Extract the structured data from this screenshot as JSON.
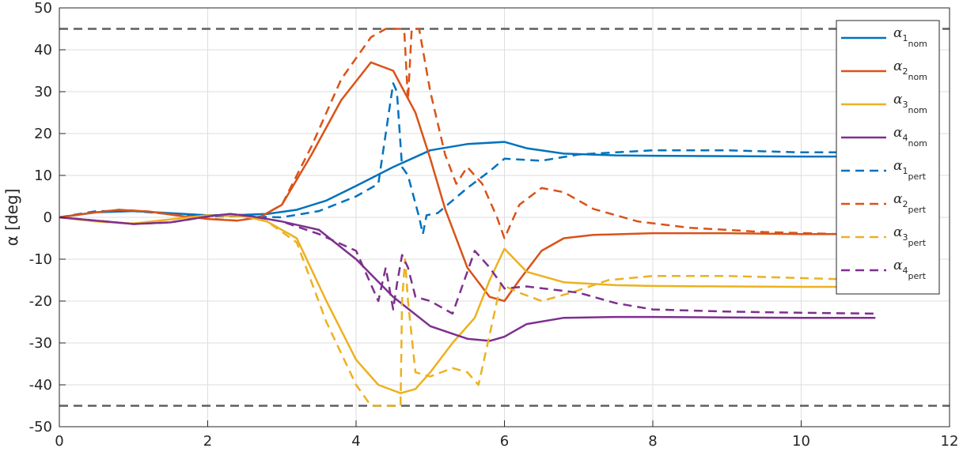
{
  "chart_data": {
    "type": "line",
    "xlabel": "",
    "ylabel": "α [deg]",
    "xlim": [
      0,
      12
    ],
    "ylim": [
      -50,
      50
    ],
    "xticks": [
      0,
      2,
      4,
      6,
      8,
      10,
      12
    ],
    "yticks": [
      -50,
      -40,
      -30,
      -20,
      -10,
      0,
      10,
      20,
      30,
      40,
      50
    ],
    "grid": true,
    "legend_position": "top-right",
    "reference_lines": [
      {
        "y": 45,
        "color": "#5f5f5f",
        "style": "dashed"
      },
      {
        "y": -45,
        "color": "#5f5f5f",
        "style": "dashed"
      }
    ],
    "series": [
      {
        "name": "α",
        "sub1": "1",
        "sub2": "nom",
        "color": "#0072BD",
        "style": "solid",
        "points": [
          [
            0,
            0
          ],
          [
            0.5,
            1.2
          ],
          [
            1,
            1.5
          ],
          [
            1.5,
            1
          ],
          [
            2,
            0.5
          ],
          [
            2.5,
            0.6
          ],
          [
            2.8,
            0.8
          ],
          [
            3.2,
            1.8
          ],
          [
            3.6,
            4
          ],
          [
            4,
            7.5
          ],
          [
            4.5,
            12
          ],
          [
            5,
            16
          ],
          [
            5.5,
            17.5
          ],
          [
            6,
            18
          ],
          [
            6.3,
            16.5
          ],
          [
            6.8,
            15.2
          ],
          [
            7.5,
            14.8
          ],
          [
            8,
            14.7
          ],
          [
            9,
            14.6
          ],
          [
            10,
            14.5
          ],
          [
            11,
            14.5
          ]
        ]
      },
      {
        "name": "α",
        "sub1": "2",
        "sub2": "nom",
        "color": "#D95319",
        "style": "solid",
        "points": [
          [
            0,
            0
          ],
          [
            0.4,
            1
          ],
          [
            0.8,
            1.8
          ],
          [
            1.2,
            1.4
          ],
          [
            1.6,
            0.4
          ],
          [
            2,
            -0.4
          ],
          [
            2.4,
            -0.8
          ],
          [
            2.7,
            0
          ],
          [
            3,
            3
          ],
          [
            3.4,
            15
          ],
          [
            3.8,
            28
          ],
          [
            4.2,
            37
          ],
          [
            4.5,
            35
          ],
          [
            4.8,
            25
          ],
          [
            5,
            14
          ],
          [
            5.2,
            2
          ],
          [
            5.5,
            -12
          ],
          [
            5.8,
            -19
          ],
          [
            6,
            -20
          ],
          [
            6.2,
            -15
          ],
          [
            6.5,
            -8
          ],
          [
            6.8,
            -5
          ],
          [
            7.2,
            -4.2
          ],
          [
            8,
            -3.8
          ],
          [
            9,
            -3.8
          ],
          [
            10,
            -4
          ],
          [
            11,
            -4
          ]
        ]
      },
      {
        "name": "α",
        "sub1": "3",
        "sub2": "nom",
        "color": "#EDB120",
        "style": "solid",
        "points": [
          [
            0,
            0
          ],
          [
            0.5,
            -1
          ],
          [
            1,
            -1.5
          ],
          [
            1.5,
            -0.5
          ],
          [
            2,
            0.5
          ],
          [
            2.5,
            0.2
          ],
          [
            2.8,
            -1
          ],
          [
            3.2,
            -5
          ],
          [
            3.6,
            -20
          ],
          [
            4,
            -34
          ],
          [
            4.3,
            -40
          ],
          [
            4.6,
            -42
          ],
          [
            4.8,
            -41
          ],
          [
            5,
            -37
          ],
          [
            5.3,
            -30
          ],
          [
            5.6,
            -24
          ],
          [
            5.8,
            -15
          ],
          [
            6,
            -7.5
          ],
          [
            6.3,
            -13
          ],
          [
            6.8,
            -15.5
          ],
          [
            7.5,
            -16.2
          ],
          [
            8,
            -16.4
          ],
          [
            9,
            -16.5
          ],
          [
            10,
            -16.6
          ],
          [
            11,
            -16.6
          ]
        ]
      },
      {
        "name": "α",
        "sub1": "4",
        "sub2": "nom",
        "color": "#7E2F8E",
        "style": "solid",
        "points": [
          [
            0,
            0
          ],
          [
            0.5,
            -0.8
          ],
          [
            1,
            -1.6
          ],
          [
            1.5,
            -1.2
          ],
          [
            2,
            0.2
          ],
          [
            2.3,
            0.8
          ],
          [
            2.6,
            0.2
          ],
          [
            3,
            -1
          ],
          [
            3.5,
            -3
          ],
          [
            4,
            -10
          ],
          [
            4.5,
            -19
          ],
          [
            5,
            -26
          ],
          [
            5.5,
            -29
          ],
          [
            5.8,
            -29.5
          ],
          [
            6,
            -28.5
          ],
          [
            6.3,
            -25.5
          ],
          [
            6.8,
            -24
          ],
          [
            7.5,
            -23.8
          ],
          [
            8,
            -23.8
          ],
          [
            9,
            -23.9
          ],
          [
            10,
            -24
          ],
          [
            11,
            -24
          ]
        ]
      },
      {
        "name": "α",
        "sub1": "1",
        "sub2": "pert",
        "color": "#0072BD",
        "style": "dashed",
        "points": [
          [
            0,
            0
          ],
          [
            0.5,
            1.5
          ],
          [
            1,
            1.5
          ],
          [
            1.5,
            0.8
          ],
          [
            2,
            0.3
          ],
          [
            2.5,
            0.2
          ],
          [
            3,
            0
          ],
          [
            3.5,
            1.5
          ],
          [
            4,
            5
          ],
          [
            4.3,
            8
          ],
          [
            4.5,
            32
          ],
          [
            4.55,
            30
          ],
          [
            4.62,
            12
          ],
          [
            4.7,
            10
          ],
          [
            4.85,
            0
          ],
          [
            4.9,
            -4
          ],
          [
            4.95,
            0.5
          ],
          [
            5.1,
            1
          ],
          [
            5.5,
            7
          ],
          [
            5.8,
            11
          ],
          [
            6,
            14
          ],
          [
            6.5,
            13.5
          ],
          [
            7,
            15
          ],
          [
            7.5,
            15.5
          ],
          [
            8,
            16
          ],
          [
            9,
            16
          ],
          [
            10,
            15.5
          ],
          [
            11,
            15.5
          ]
        ]
      },
      {
        "name": "α",
        "sub1": "2",
        "sub2": "pert",
        "color": "#D95319",
        "style": "dashed",
        "points": [
          [
            0,
            0
          ],
          [
            0.4,
            1
          ],
          [
            0.8,
            1.8
          ],
          [
            1.2,
            1.4
          ],
          [
            1.6,
            0.5
          ],
          [
            2,
            -0.3
          ],
          [
            2.4,
            -0.8
          ],
          [
            2.7,
            0
          ],
          [
            3,
            3
          ],
          [
            3.4,
            17
          ],
          [
            3.8,
            33
          ],
          [
            4.2,
            43
          ],
          [
            4.4,
            45
          ],
          [
            4.6,
            45
          ],
          [
            4.65,
            44.5
          ],
          [
            4.7,
            28
          ],
          [
            4.75,
            45
          ],
          [
            4.85,
            45
          ],
          [
            4.9,
            40
          ],
          [
            5.0,
            30
          ],
          [
            5.2,
            15
          ],
          [
            5.35,
            8
          ],
          [
            5.5,
            12
          ],
          [
            5.7,
            8
          ],
          [
            5.9,
            0
          ],
          [
            6,
            -5
          ],
          [
            6.2,
            3
          ],
          [
            6.5,
            7
          ],
          [
            6.8,
            6
          ],
          [
            7.2,
            2
          ],
          [
            7.8,
            -1
          ],
          [
            8.5,
            -2.5
          ],
          [
            9.5,
            -3.5
          ],
          [
            10.5,
            -4
          ],
          [
            11,
            -4
          ]
        ]
      },
      {
        "name": "α",
        "sub1": "3",
        "sub2": "pert",
        "color": "#EDB120",
        "style": "dashed",
        "points": [
          [
            0,
            0
          ],
          [
            0.5,
            -1
          ],
          [
            1,
            -1.5
          ],
          [
            1.5,
            -0.5
          ],
          [
            2,
            0.5
          ],
          [
            2.5,
            0.2
          ],
          [
            2.8,
            -1
          ],
          [
            3.2,
            -6
          ],
          [
            3.6,
            -25
          ],
          [
            4,
            -40
          ],
          [
            4.2,
            -45
          ],
          [
            4.6,
            -45
          ],
          [
            4.62,
            -20
          ],
          [
            4.66,
            -10
          ],
          [
            4.7,
            -20
          ],
          [
            4.8,
            -37
          ],
          [
            5,
            -38
          ],
          [
            5.3,
            -36
          ],
          [
            5.5,
            -37
          ],
          [
            5.65,
            -40
          ],
          [
            5.8,
            -28
          ],
          [
            5.95,
            -16
          ],
          [
            6.2,
            -18
          ],
          [
            6.5,
            -20
          ],
          [
            6.9,
            -18
          ],
          [
            7.4,
            -15
          ],
          [
            8,
            -14
          ],
          [
            9,
            -14
          ],
          [
            10,
            -14.5
          ],
          [
            11,
            -15
          ]
        ]
      },
      {
        "name": "α",
        "sub1": "4",
        "sub2": "pert",
        "color": "#7E2F8E",
        "style": "dashed",
        "points": [
          [
            0,
            0
          ],
          [
            0.5,
            -0.8
          ],
          [
            1,
            -1.6
          ],
          [
            1.5,
            -1.2
          ],
          [
            2,
            0.2
          ],
          [
            2.3,
            0.8
          ],
          [
            2.6,
            0.2
          ],
          [
            3,
            -1
          ],
          [
            3.5,
            -4
          ],
          [
            4,
            -8
          ],
          [
            4.3,
            -20
          ],
          [
            4.4,
            -12
          ],
          [
            4.5,
            -22
          ],
          [
            4.55,
            -16
          ],
          [
            4.62,
            -9
          ],
          [
            4.7,
            -12
          ],
          [
            4.8,
            -19
          ],
          [
            5,
            -20
          ],
          [
            5.3,
            -23
          ],
          [
            5.6,
            -8
          ],
          [
            5.8,
            -12
          ],
          [
            6,
            -17
          ],
          [
            6.3,
            -16.5
          ],
          [
            7,
            -18
          ],
          [
            7.5,
            -20.5
          ],
          [
            8,
            -22
          ],
          [
            9,
            -22.5
          ],
          [
            10,
            -22.8
          ],
          [
            11,
            -23
          ]
        ]
      }
    ]
  }
}
